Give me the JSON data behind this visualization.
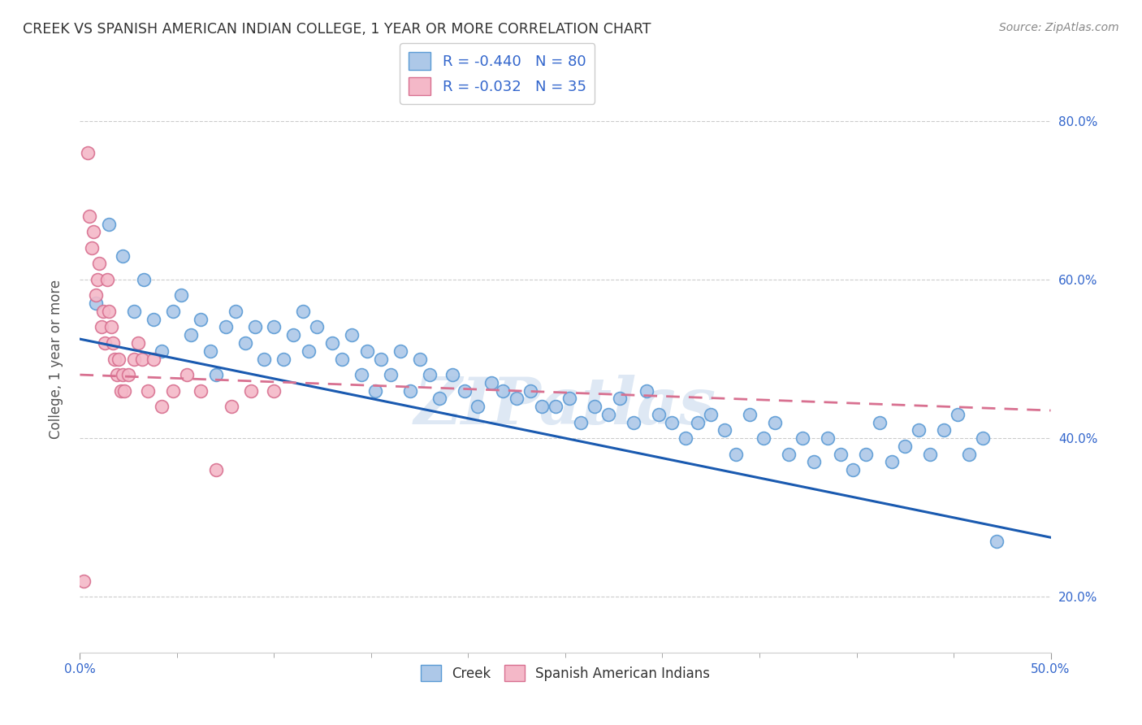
{
  "title": "CREEK VS SPANISH AMERICAN INDIAN COLLEGE, 1 YEAR OR MORE CORRELATION CHART",
  "source_text": "Source: ZipAtlas.com",
  "ylabel": "College, 1 year or more",
  "xlim": [
    0.0,
    0.5
  ],
  "ylim": [
    0.13,
    0.87
  ],
  "xtick_positions": [
    0.0,
    0.5
  ],
  "xtick_labels": [
    "0.0%",
    "50.0%"
  ],
  "ytick_positions": [
    0.2,
    0.4,
    0.6,
    0.8
  ],
  "ytick_labels": [
    "20.0%",
    "40.0%",
    "60.0%",
    "80.0%"
  ],
  "creek_color": "#adc8e8",
  "creek_edge_color": "#5b9bd5",
  "spanish_color": "#f4b8c8",
  "spanish_edge_color": "#d87090",
  "creek_line_color": "#1a5ab0",
  "spanish_line_color": "#d87090",
  "R_creek": -0.44,
  "N_creek": 80,
  "R_spanish": -0.032,
  "N_spanish": 35,
  "legend_label_creek": "Creek",
  "legend_label_spanish": "Spanish American Indians",
  "watermark": "ZIPatlas",
  "creek_x": [
    0.008,
    0.015,
    0.022,
    0.028,
    0.033,
    0.038,
    0.042,
    0.048,
    0.052,
    0.057,
    0.062,
    0.067,
    0.07,
    0.075,
    0.08,
    0.085,
    0.09,
    0.095,
    0.1,
    0.105,
    0.11,
    0.115,
    0.118,
    0.122,
    0.13,
    0.135,
    0.14,
    0.145,
    0.148,
    0.152,
    0.155,
    0.16,
    0.165,
    0.17,
    0.175,
    0.18,
    0.185,
    0.192,
    0.198,
    0.205,
    0.212,
    0.218,
    0.225,
    0.232,
    0.238,
    0.245,
    0.252,
    0.258,
    0.265,
    0.272,
    0.278,
    0.285,
    0.292,
    0.298,
    0.305,
    0.312,
    0.318,
    0.325,
    0.332,
    0.338,
    0.345,
    0.352,
    0.358,
    0.365,
    0.372,
    0.378,
    0.385,
    0.392,
    0.398,
    0.405,
    0.412,
    0.418,
    0.425,
    0.432,
    0.438,
    0.445,
    0.452,
    0.458,
    0.465,
    0.472
  ],
  "creek_y": [
    0.57,
    0.67,
    0.63,
    0.56,
    0.6,
    0.55,
    0.51,
    0.56,
    0.58,
    0.53,
    0.55,
    0.51,
    0.48,
    0.54,
    0.56,
    0.52,
    0.54,
    0.5,
    0.54,
    0.5,
    0.53,
    0.56,
    0.51,
    0.54,
    0.52,
    0.5,
    0.53,
    0.48,
    0.51,
    0.46,
    0.5,
    0.48,
    0.51,
    0.46,
    0.5,
    0.48,
    0.45,
    0.48,
    0.46,
    0.44,
    0.47,
    0.46,
    0.45,
    0.46,
    0.44,
    0.44,
    0.45,
    0.42,
    0.44,
    0.43,
    0.45,
    0.42,
    0.46,
    0.43,
    0.42,
    0.4,
    0.42,
    0.43,
    0.41,
    0.38,
    0.43,
    0.4,
    0.42,
    0.38,
    0.4,
    0.37,
    0.4,
    0.38,
    0.36,
    0.38,
    0.42,
    0.37,
    0.39,
    0.41,
    0.38,
    0.41,
    0.43,
    0.38,
    0.4,
    0.27
  ],
  "spanish_x": [
    0.002,
    0.004,
    0.005,
    0.006,
    0.007,
    0.008,
    0.009,
    0.01,
    0.011,
    0.012,
    0.013,
    0.014,
    0.015,
    0.016,
    0.017,
    0.018,
    0.019,
    0.02,
    0.021,
    0.022,
    0.023,
    0.025,
    0.028,
    0.03,
    0.032,
    0.035,
    0.038,
    0.042,
    0.048,
    0.055,
    0.062,
    0.07,
    0.078,
    0.088,
    0.1
  ],
  "spanish_y": [
    0.22,
    0.76,
    0.68,
    0.64,
    0.66,
    0.58,
    0.6,
    0.62,
    0.54,
    0.56,
    0.52,
    0.6,
    0.56,
    0.54,
    0.52,
    0.5,
    0.48,
    0.5,
    0.46,
    0.48,
    0.46,
    0.48,
    0.5,
    0.52,
    0.5,
    0.46,
    0.5,
    0.44,
    0.46,
    0.48,
    0.46,
    0.36,
    0.44,
    0.46,
    0.46
  ],
  "creek_trend_x0": 0.0,
  "creek_trend_y0": 0.525,
  "creek_trend_x1": 0.5,
  "creek_trend_y1": 0.275,
  "spanish_trend_x0": 0.0,
  "spanish_trend_y0": 0.48,
  "spanish_trend_x1": 0.5,
  "spanish_trend_y1": 0.435
}
